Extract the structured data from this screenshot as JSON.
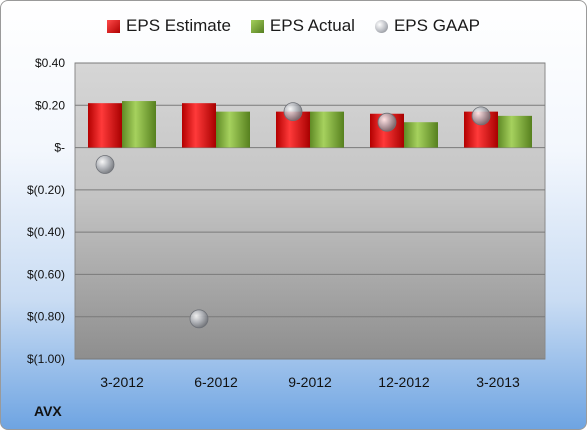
{
  "chart_data": {
    "type": "bar",
    "categories": [
      "3-2012",
      "6-2012",
      "9-2012",
      "12-2012",
      "3-2013"
    ],
    "series": [
      {
        "name": "EPS Estimate",
        "kind": "bar",
        "color": "#d21f1f",
        "values": [
          0.21,
          0.21,
          0.17,
          0.16,
          0.17
        ]
      },
      {
        "name": "EPS Actual",
        "kind": "bar",
        "color": "#7fae3a",
        "values": [
          0.22,
          0.17,
          0.17,
          0.12,
          0.15
        ]
      },
      {
        "name": "EPS GAAP",
        "kind": "scatter",
        "color": "#a9acb2",
        "values": [
          -0.08,
          -0.81,
          0.17,
          0.12,
          0.15
        ]
      }
    ],
    "ylim": [
      -1.0,
      0.4
    ],
    "yticks": [
      0.4,
      0.2,
      0.0,
      -0.2,
      -0.4,
      -0.6,
      -0.8,
      -1.0
    ],
    "ytick_labels": [
      "$0.40",
      "$0.20",
      "$-",
      "$(0.20)",
      "$(0.40)",
      "$(0.60)",
      "$(0.80)",
      "$(1.00)"
    ],
    "grid": true,
    "legend_position": "top"
  },
  "ticker": "AVX"
}
